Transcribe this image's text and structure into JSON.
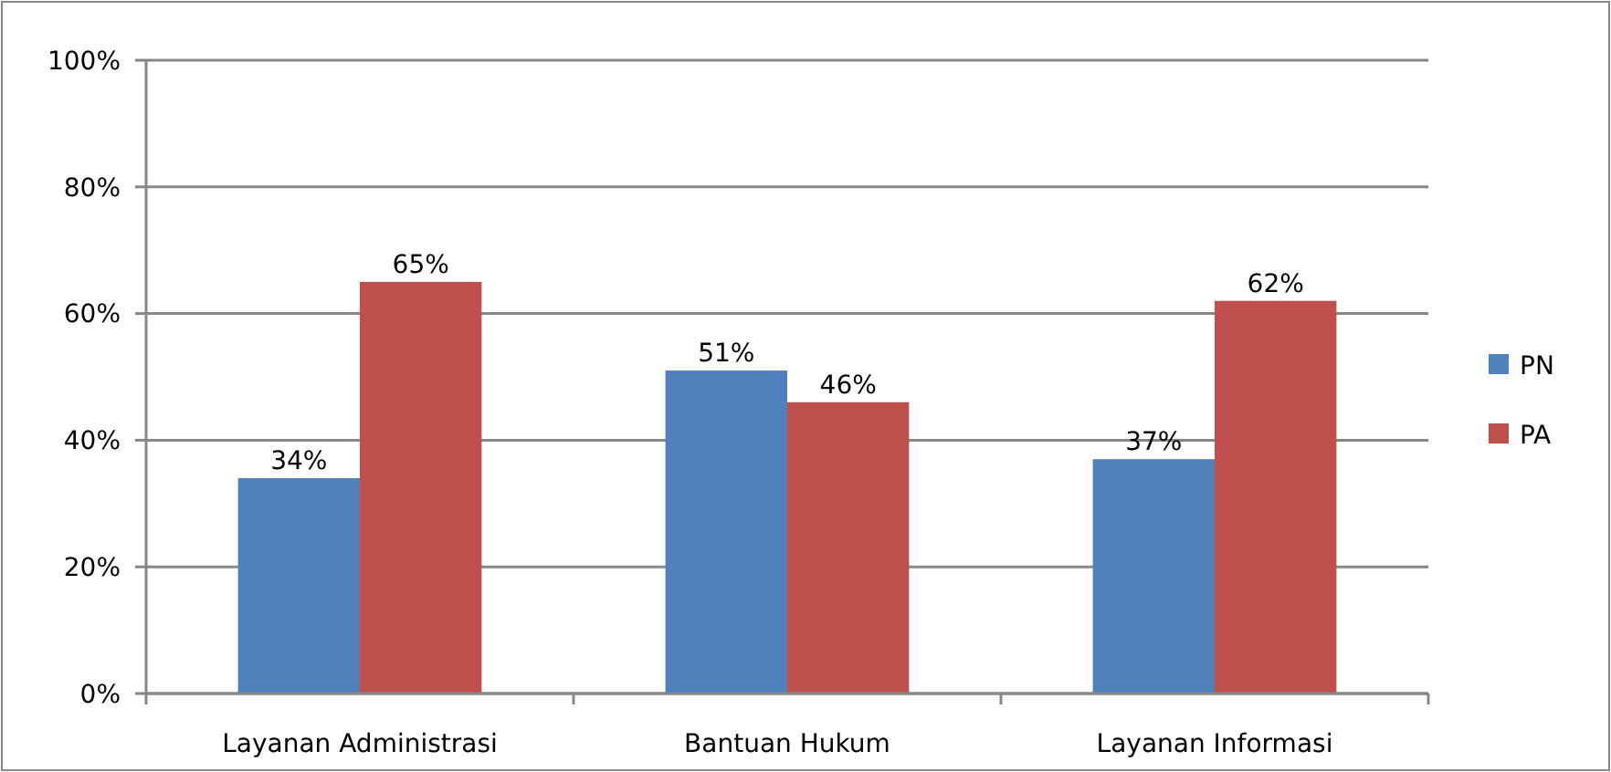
{
  "chart_data": {
    "type": "bar",
    "categories": [
      "Layanan Administrasi",
      "Bantuan Hukum",
      "Layanan Informasi"
    ],
    "series": [
      {
        "name": "PN",
        "color": "#4f81bd",
        "values": [
          34,
          51,
          37
        ],
        "value_labels": [
          "34%",
          "51%",
          "37%"
        ]
      },
      {
        "name": "PA",
        "color": "#c0504d",
        "values": [
          65,
          46,
          62
        ],
        "value_labels": [
          "65%",
          "46%",
          "62%"
        ]
      }
    ],
    "ylim": [
      0,
      100
    ],
    "yticks": [
      {
        "value": 0,
        "label": "0%"
      },
      {
        "value": 20,
        "label": "20%"
      },
      {
        "value": 40,
        "label": "40%"
      },
      {
        "value": 60,
        "label": "60%"
      },
      {
        "value": 80,
        "label": "80%"
      },
      {
        "value": 100,
        "label": "100%"
      }
    ],
    "grid": "y",
    "legend": "right"
  }
}
